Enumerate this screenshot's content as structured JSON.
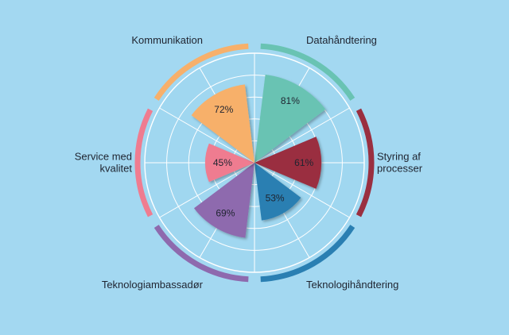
{
  "chart_data": {
    "type": "polar-area",
    "title": "",
    "rmax": 100,
    "grid": true,
    "categories": [
      {
        "label": [
          "Datahåndtering"
        ],
        "value": 81,
        "value_text": "81%",
        "color": "#69c3b3"
      },
      {
        "label": [
          "Styring af",
          "processer"
        ],
        "value": 61,
        "value_text": "61%",
        "color": "#9a2f40"
      },
      {
        "label": [
          "Teknologihåndtering"
        ],
        "value": 53,
        "value_text": "53%",
        "color": "#2a7fb2"
      },
      {
        "label": [
          "Teknologiambassadør"
        ],
        "value": 69,
        "value_text": "69%",
        "color": "#8e6aae"
      },
      {
        "label": [
          "Service med",
          "kvalitet"
        ],
        "value": 45,
        "value_text": "45%",
        "color": "#ef7c90"
      },
      {
        "label": [
          "Kommunikation"
        ],
        "value": 72,
        "value_text": "72%",
        "color": "#f7b06b"
      }
    ]
  }
}
